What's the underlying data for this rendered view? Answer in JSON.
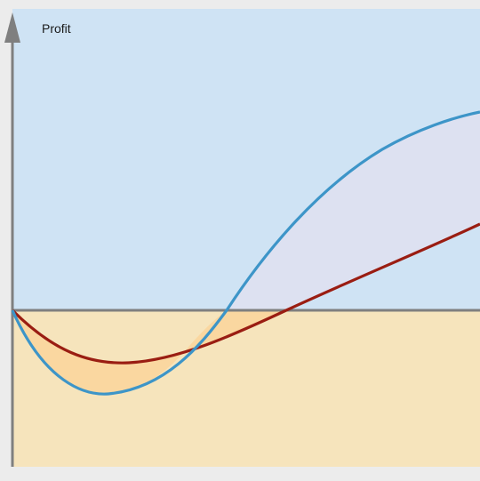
{
  "diagram": {
    "y_axis_label": "Profit",
    "colors": {
      "profit_region": "#cfe3f4",
      "loss_region": "#f6e4bc",
      "blue_curve": "#3d95c8",
      "red_curve": "#9a1d12",
      "gap_fill_above": "#dde1f1",
      "gap_fill_below": "#fad7a0",
      "axis": "#7f7f7f",
      "frame": "#ececec"
    },
    "curves": [
      {
        "id": "blue-curve",
        "color_key": "blue_curve"
      },
      {
        "id": "red-curve",
        "color_key": "red_curve"
      }
    ]
  }
}
